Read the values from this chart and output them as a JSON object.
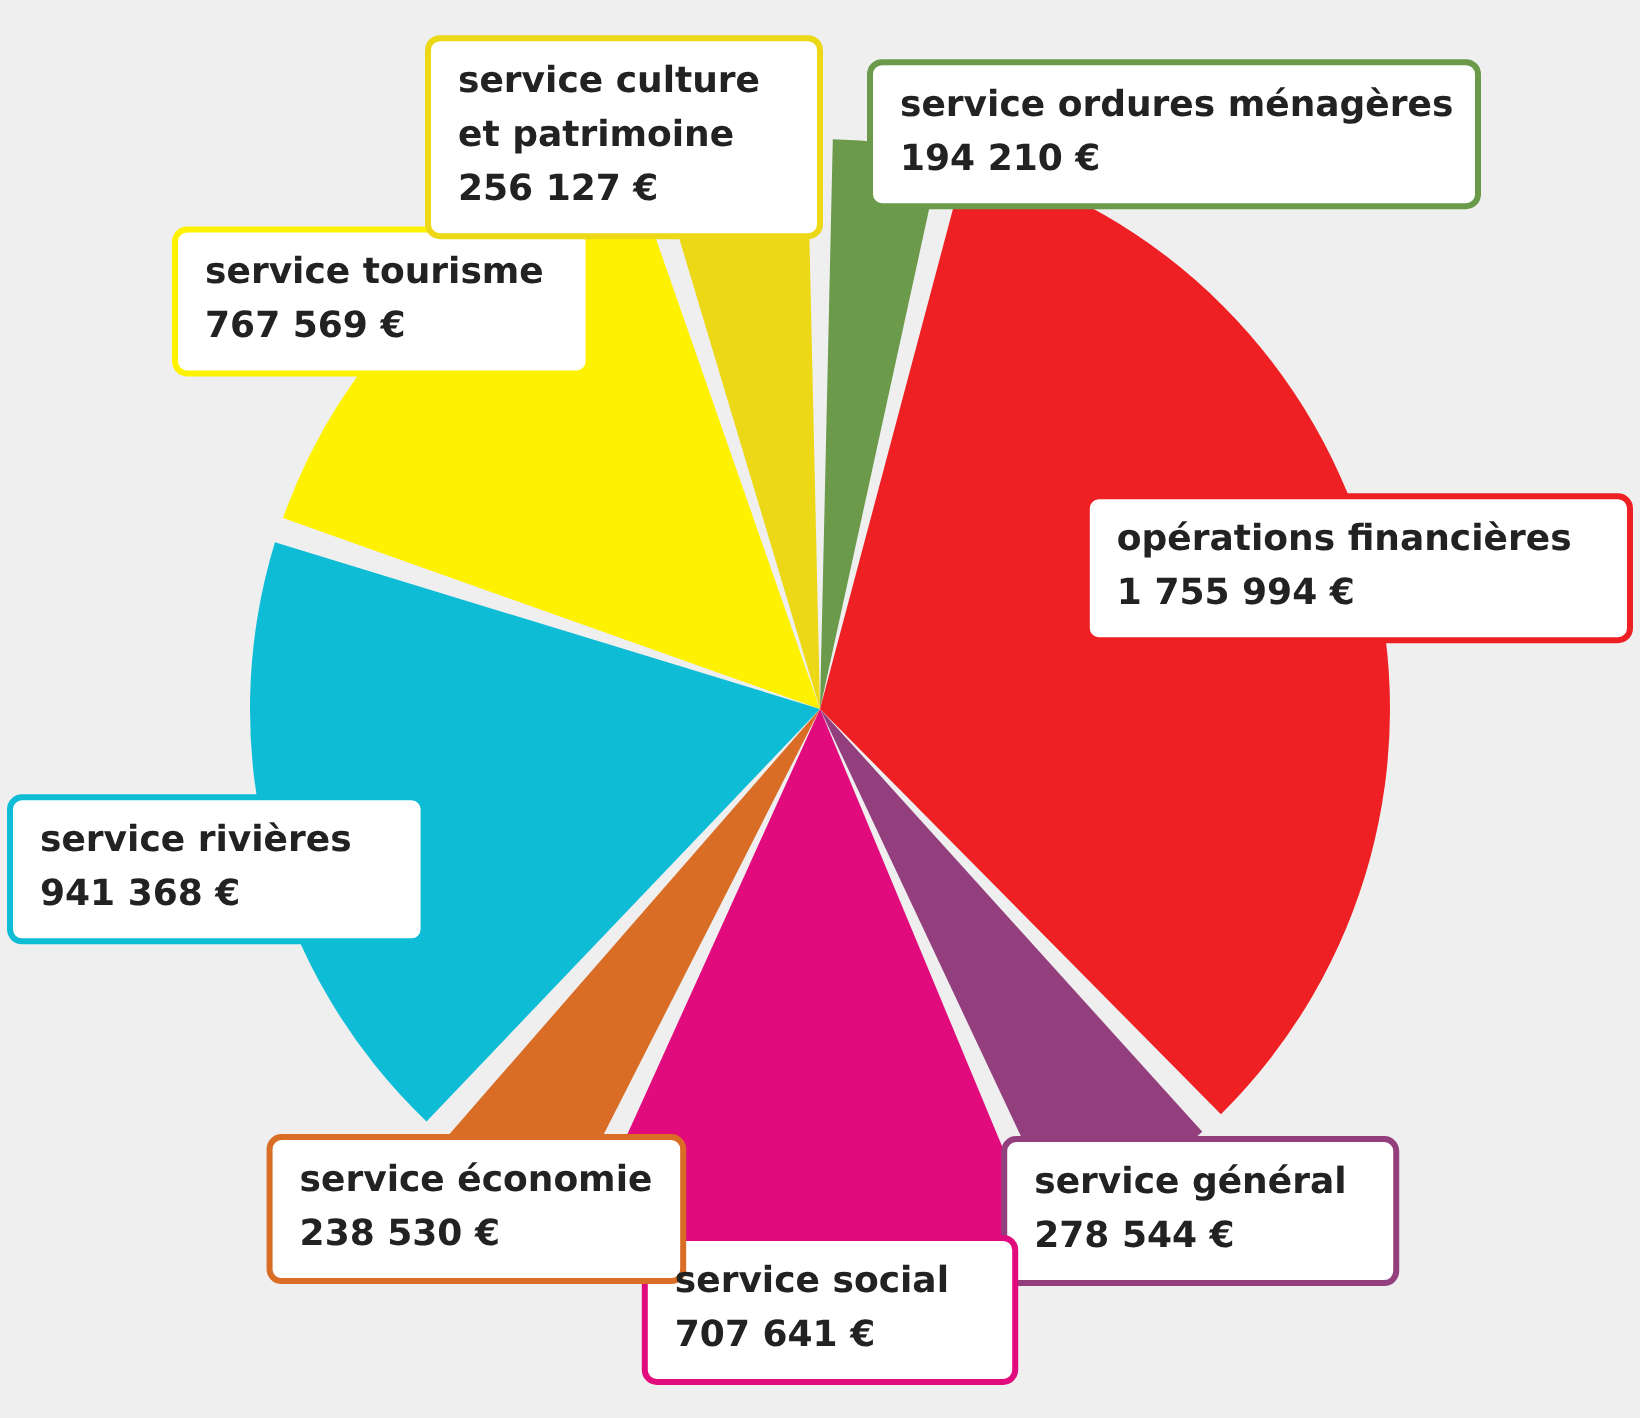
{
  "chart_data": {
    "type": "pie",
    "categories": [
      "service ordures ménagères",
      "opérations financières",
      "service général",
      "service social",
      "service économie",
      "service rivières",
      "service tourisme",
      "service culture et patrimoine"
    ],
    "values": [
      194210,
      1755994,
      278544,
      707641,
      238530,
      941368,
      767569,
      256127
    ],
    "value_labels": [
      "194 210 €",
      "1 755 994 €",
      "278 544 €",
      "707 641 €",
      "238 530 €",
      "941 368 €",
      "767 569 €",
      "256 127 €"
    ],
    "colors": [
      "#6a9a4a",
      "#ee2024",
      "#933f7e",
      "#e20b7e",
      "#d96d26",
      "#0fbcd6",
      "#fff200",
      "#ecd817"
    ]
  }
}
